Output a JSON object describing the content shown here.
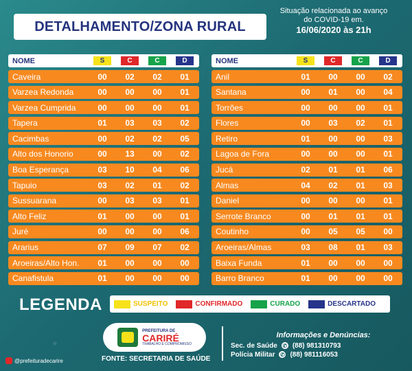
{
  "header": {
    "title": "DETALHAMENTO/ZONA RURAL",
    "situation_line1": "Situação relacionada ao avanço",
    "situation_line2": "do COVID-19 em.",
    "situation_date": "16/06/2020 às 21h"
  },
  "columns": {
    "name": "NOME",
    "s": "S",
    "c": "C",
    "cc": "C",
    "d": "D"
  },
  "left_table": [
    {
      "name": "Caveira",
      "s": "00",
      "c": "02",
      "cc": "02",
      "d": "01"
    },
    {
      "name": "Varzea Redonda",
      "s": "00",
      "c": "00",
      "cc": "00",
      "d": "01"
    },
    {
      "name": "Varzea Cumprida",
      "s": "00",
      "c": "00",
      "cc": "00",
      "d": "01"
    },
    {
      "name": "Tapera",
      "s": "01",
      "c": "03",
      "cc": "03",
      "d": "02"
    },
    {
      "name": "Cacimbas",
      "s": "00",
      "c": "02",
      "cc": "02",
      "d": "05"
    },
    {
      "name": "Alto dos Honorio",
      "s": "00",
      "c": "13",
      "cc": "00",
      "d": "02"
    },
    {
      "name": "Boa Esperança",
      "s": "03",
      "c": "10",
      "cc": "04",
      "d": "06"
    },
    {
      "name": "Tapuio",
      "s": "03",
      "c": "02",
      "cc": "01",
      "d": "02"
    },
    {
      "name": "Sussuarana",
      "s": "00",
      "c": "03",
      "cc": "03",
      "d": "01"
    },
    {
      "name": "Alto Feliz",
      "s": "01",
      "c": "00",
      "cc": "00",
      "d": "01"
    },
    {
      "name": "Juré",
      "s": "00",
      "c": "00",
      "cc": "00",
      "d": "06"
    },
    {
      "name": "Ararius",
      "s": "07",
      "c": "09",
      "cc": "07",
      "d": "02"
    },
    {
      "name": "Aroeiras/Alto Hon.",
      "s": "01",
      "c": "00",
      "cc": "00",
      "d": "00"
    },
    {
      "name": "Canafistula",
      "s": "01",
      "c": "00",
      "cc": "00",
      "d": "00"
    }
  ],
  "right_table": [
    {
      "name": "Anil",
      "s": "01",
      "c": "00",
      "cc": "00",
      "d": "02"
    },
    {
      "name": "Santana",
      "s": "00",
      "c": "01",
      "cc": "00",
      "d": "04"
    },
    {
      "name": "Torrões",
      "s": "00",
      "c": "00",
      "cc": "00",
      "d": "01"
    },
    {
      "name": "Flores",
      "s": "00",
      "c": "03",
      "cc": "02",
      "d": "01"
    },
    {
      "name": "Retiro",
      "s": "01",
      "c": "00",
      "cc": "00",
      "d": "03"
    },
    {
      "name": "Lagoa de Fora",
      "s": "00",
      "c": "00",
      "cc": "00",
      "d": "01"
    },
    {
      "name": "Jucá",
      "s": "02",
      "c": "01",
      "cc": "01",
      "d": "06"
    },
    {
      "name": "Almas",
      "s": "04",
      "c": "02",
      "cc": "01",
      "d": "03"
    },
    {
      "name": "Daniel",
      "s": "00",
      "c": "00",
      "cc": "00",
      "d": "01"
    },
    {
      "name": "Serrote Branco",
      "s": "00",
      "c": "01",
      "cc": "01",
      "d": "01"
    },
    {
      "name": "Coutinho",
      "s": "00",
      "c": "05",
      "cc": "05",
      "d": "00"
    },
    {
      "name": "Aroeiras/Almas",
      "s": "03",
      "c": "08",
      "cc": "01",
      "d": "03"
    },
    {
      "name": "Baixa Funda",
      "s": "01",
      "c": "00",
      "cc": "00",
      "d": "00"
    },
    {
      "name": "Barro Branco",
      "s": "01",
      "c": "00",
      "cc": "00",
      "d": "00"
    }
  ],
  "legend": {
    "title": "LEGENDA",
    "items": [
      {
        "label": "SUSPEITO",
        "color": "#f7e21a"
      },
      {
        "label": "CONFIRMADO",
        "color": "#e02729"
      },
      {
        "label": "CURADO",
        "color": "#16a34a"
      },
      {
        "label": "DESCARTADO",
        "color": "#25348a"
      }
    ]
  },
  "footer": {
    "logo_small": "PREFEITURA DE",
    "logo_big": "CARIRÉ",
    "logo_tiny": "TRABALHO E COMPROMISSO",
    "source": "FONTE: SECRETARIA DE SAÚDE",
    "contacts_title": "Informações e Denúncias:",
    "contact1_label": "Sec. de Saúde",
    "contact1_number": "(88) 981310793",
    "contact2_label": "Polícia Militar",
    "contact2_number": "(88) 981116053",
    "instagram": "@prefeituradecarire"
  }
}
